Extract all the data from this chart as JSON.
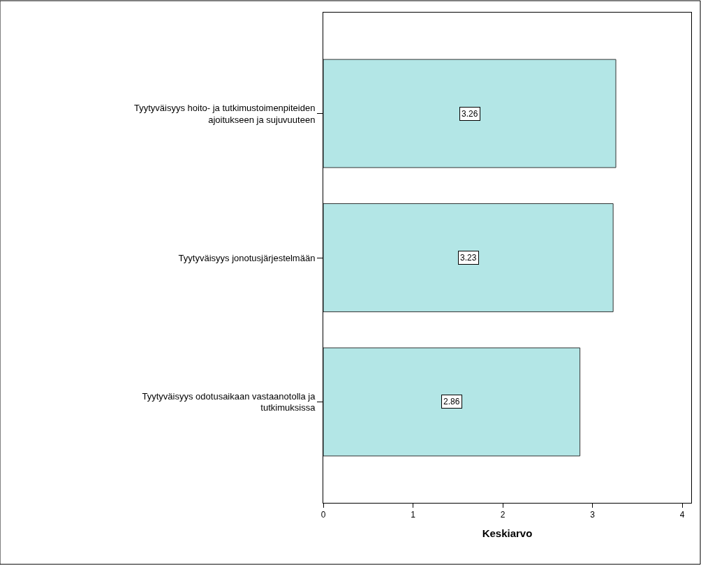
{
  "chart_data": {
    "type": "bar",
    "orientation": "horizontal",
    "xlabel": "Keskiarvo",
    "categories": [
      "Tyytyväisyys hoito- ja tutkimustoimenpiteiden\najoitukseen ja sujuvuuteen",
      "Tyytyväisyys jonotusjärjestelmään",
      "Tyytyväisyys odotusaikaan vastaanotolla ja\ntutkimuksissa"
    ],
    "values": [
      3.26,
      3.23,
      2.86
    ],
    "color": "#b3e6e6",
    "xlim": [
      0,
      4.1
    ],
    "xticks": [
      0,
      1,
      2,
      3,
      4
    ],
    "data_labels": true
  }
}
